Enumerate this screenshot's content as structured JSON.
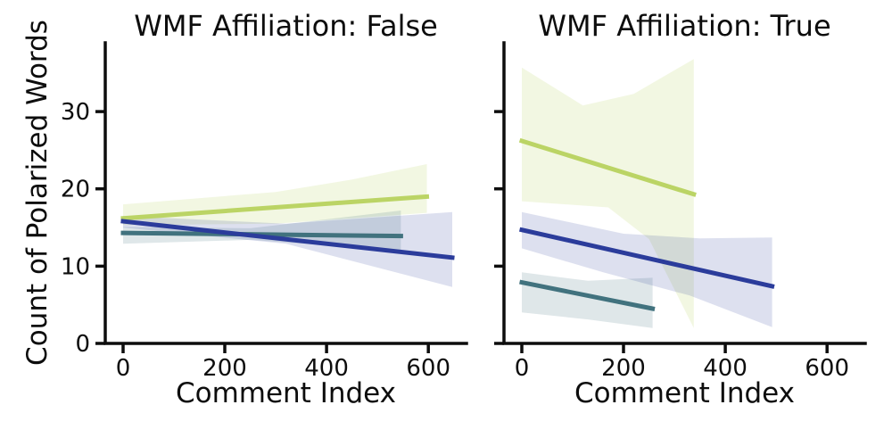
{
  "chart_data": {
    "type": "line",
    "description": "Two-panel regression (lmplot-style) figure with confidence bands, three unlabeled series per panel",
    "shared": {
      "xlabel": "Comment Index",
      "ylabel": "Count of Polarized Words",
      "xticks": [
        0,
        200,
        400,
        600
      ],
      "yticks": [
        0,
        10,
        20,
        30
      ],
      "xlim": [
        -35,
        675
      ],
      "ylim": [
        0,
        38.9
      ],
      "grid": false,
      "legend": "none",
      "axis_color": "#0d0d0d"
    },
    "panels": [
      {
        "title": "WMF Affiliation: False",
        "series": [
          {
            "name": "green",
            "color": "#bbd465",
            "band_opacity": 0.19,
            "line": [
              [
                0,
                16.2
              ],
              [
                597,
                19.0
              ]
            ],
            "band": {
              "upper": [
                [
                  0,
                  18.0
                ],
                [
                  300,
                  19.6
                ],
                [
                  450,
                  21.2
                ],
                [
                  597,
                  23.2
                ]
              ],
              "lower": [
                [
                  0,
                  15.3
                ],
                [
                  300,
                  15.5
                ],
                [
                  597,
                  16.9
                ]
              ]
            }
          },
          {
            "name": "teal",
            "color": "#41727e",
            "band_opacity": 0.17,
            "line": [
              [
                0,
                14.3
              ],
              [
                546,
                13.9
              ]
            ],
            "band": {
              "upper": [
                [
                  0,
                  15.1
                ],
                [
                  250,
                  14.9
                ],
                [
                  546,
                  17.2
                ]
              ],
              "lower": [
                [
                  0,
                  12.9
                ],
                [
                  250,
                  13.4
                ],
                [
                  546,
                  12.0
                ]
              ]
            }
          },
          {
            "name": "blue",
            "color": "#2b3c9b",
            "band_opacity": 0.16,
            "line": [
              [
                0,
                15.8
              ],
              [
                647,
                11.1
              ]
            ],
            "band": {
              "upper": [
                [
                  0,
                  16.5
                ],
                [
                  320,
                  15.5
                ],
                [
                  647,
                  17.0
                ]
              ],
              "lower": [
                [
                  0,
                  15.0
                ],
                [
                  320,
                  12.9
                ],
                [
                  647,
                  7.3
                ]
              ]
            }
          }
        ]
      },
      {
        "title": "WMF Affiliation: True",
        "series": [
          {
            "name": "green",
            "color": "#bbd465",
            "band_opacity": 0.19,
            "line": [
              [
                0,
                26.2
              ],
              [
                338,
                19.3
              ]
            ],
            "band": {
              "upper": [
                [
                  0,
                  35.7
                ],
                [
                  120,
                  30.8
                ],
                [
                  220,
                  32.3
                ],
                [
                  338,
                  36.8
                ]
              ],
              "lower": [
                [
                  0,
                  18.4
                ],
                [
                  170,
                  17.6
                ],
                [
                  250,
                  13.5
                ],
                [
                  338,
                  2.0
                ]
              ]
            }
          },
          {
            "name": "teal",
            "color": "#41727e",
            "band_opacity": 0.17,
            "line": [
              [
                0,
                7.9
              ],
              [
                257,
                4.5
              ]
            ],
            "band": {
              "upper": [
                [
                  0,
                  9.2
                ],
                [
                  130,
                  8.1
                ],
                [
                  257,
                  8.5
                ]
              ],
              "lower": [
                [
                  0,
                  4.0
                ],
                [
                  130,
                  3.1
                ],
                [
                  257,
                  2.0
                ]
              ]
            }
          },
          {
            "name": "blue",
            "color": "#2b3c9b",
            "band_opacity": 0.16,
            "line": [
              [
                0,
                14.7
              ],
              [
                492,
                7.4
              ]
            ],
            "band": {
              "upper": [
                [
                  0,
                  17.0
                ],
                [
                  200,
                  14.2
                ],
                [
                  350,
                  13.6
                ],
                [
                  492,
                  13.7
                ]
              ],
              "lower": [
                [
                  0,
                  12.3
                ],
                [
                  160,
                  9.2
                ],
                [
                  330,
                  6.2
                ],
                [
                  492,
                  2.1
                ]
              ]
            }
          }
        ]
      }
    ]
  }
}
